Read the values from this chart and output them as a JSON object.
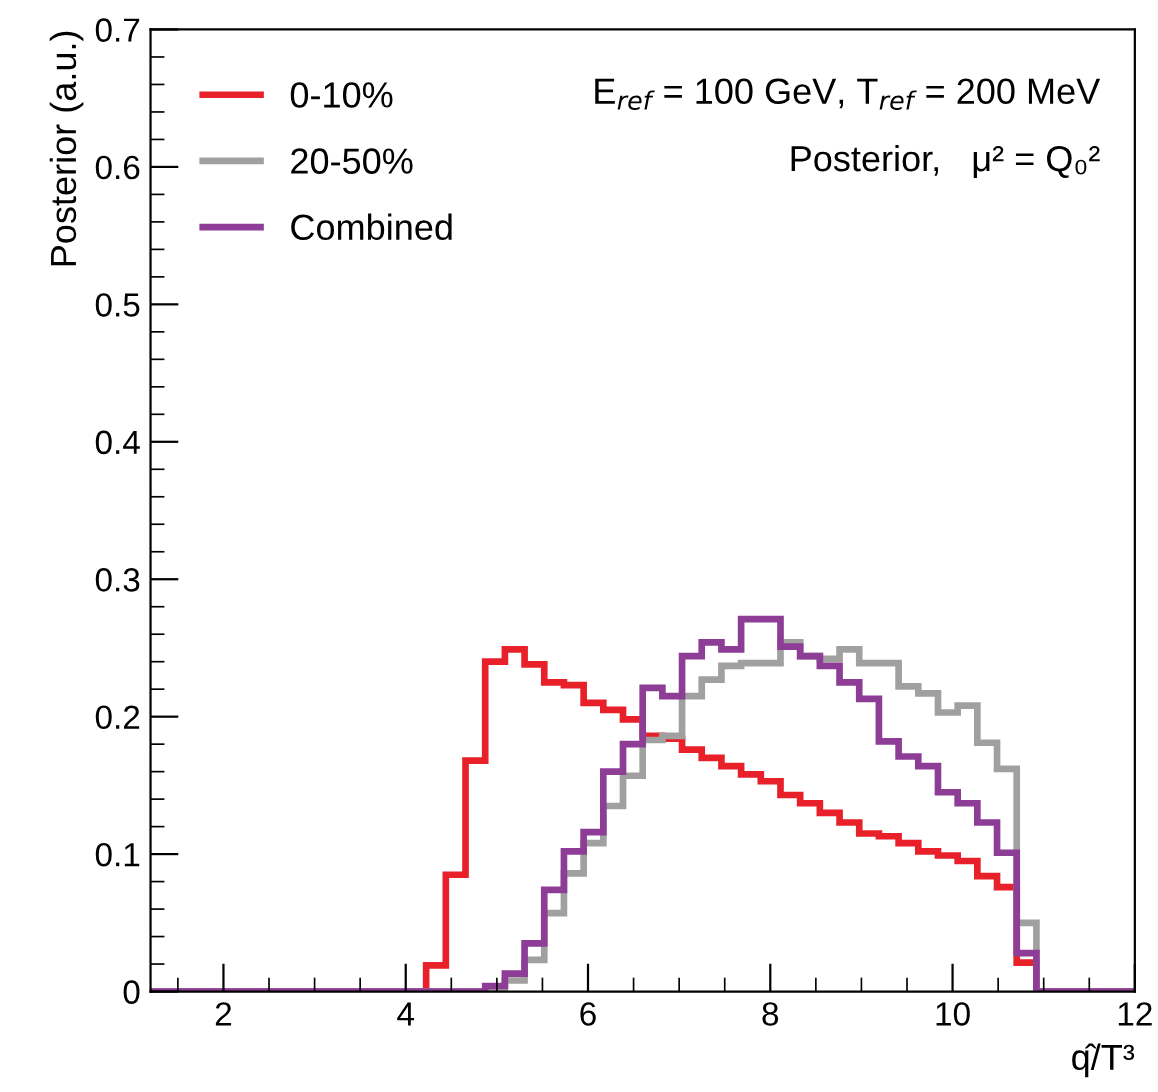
{
  "chart_data": {
    "type": "histogram",
    "xlabel": "q̂/T³",
    "ylabel": "Posterior (a.u.)",
    "annotations": [
      "E$_{ref}$ = 100 GeV, T$_{ref}$ = 200 MeV",
      "Posterior,   μ² = Q₀²"
    ],
    "bins": [
      1.2,
      1.416,
      1.632,
      1.848,
      2.064,
      2.28,
      2.496,
      2.712,
      2.928,
      3.144,
      3.36,
      3.576,
      3.792,
      4.008,
      4.224,
      4.44,
      4.656,
      4.872,
      5.088,
      5.304,
      5.52,
      5.736,
      5.952,
      6.168,
      6.384,
      6.6,
      6.816,
      7.032,
      7.248,
      7.464,
      7.68,
      7.896,
      8.112,
      8.328,
      8.544,
      8.76,
      8.976,
      9.192,
      9.408,
      9.624,
      9.84,
      10.056,
      10.272,
      10.488,
      10.704,
      10.92,
      11.136,
      11.352,
      11.568,
      11.784,
      12.0
    ],
    "series": [
      {
        "name": "0-10%",
        "color": "#e8202a",
        "values": [
          0,
          0,
          0,
          0,
          0,
          0,
          0,
          0,
          0,
          0,
          0,
          0,
          0,
          0,
          0.019,
          0.085,
          0.168,
          0.24,
          0.249,
          0.238,
          0.225,
          0.223,
          0.21,
          0.205,
          0.198,
          0.186,
          0.184,
          0.176,
          0.17,
          0.164,
          0.158,
          0.153,
          0.143,
          0.137,
          0.13,
          0.123,
          0.115,
          0.113,
          0.108,
          0.102,
          0.099,
          0.095,
          0.084,
          0.076,
          0.021,
          0,
          0,
          0,
          0,
          0
        ]
      },
      {
        "name": "20-50%",
        "color": "#a0a0a0",
        "values": [
          0,
          0,
          0,
          0,
          0,
          0,
          0,
          0,
          0,
          0,
          0,
          0,
          0,
          0,
          0,
          0,
          0,
          0,
          0.008,
          0.023,
          0.057,
          0.086,
          0.108,
          0.135,
          0.157,
          0.183,
          0.186,
          0.215,
          0.227,
          0.237,
          0.239,
          0.239,
          0.254,
          0.244,
          0.242,
          0.249,
          0.239,
          0.239,
          0.222,
          0.217,
          0.203,
          0.208,
          0.181,
          0.162,
          0.05,
          0,
          0,
          0,
          0,
          0
        ]
      },
      {
        "name": "Combined",
        "color": "#8e3d96",
        "values": [
          0,
          0,
          0,
          0,
          0,
          0,
          0,
          0,
          0,
          0,
          0,
          0,
          0,
          0,
          0,
          0,
          0,
          0.004,
          0.013,
          0.035,
          0.074,
          0.102,
          0.116,
          0.16,
          0.18,
          0.221,
          0.215,
          0.244,
          0.254,
          0.249,
          0.271,
          0.271,
          0.251,
          0.244,
          0.237,
          0.225,
          0.213,
          0.182,
          0.171,
          0.164,
          0.145,
          0.137,
          0.123,
          0.101,
          0.028,
          0,
          0,
          0,
          0,
          0
        ]
      }
    ],
    "xlim": [
      1.2,
      12
    ],
    "xticks": [
      2,
      4,
      6,
      8,
      10,
      12
    ],
    "ylim": [
      0,
      0.7
    ],
    "yticks": [
      0,
      0.1,
      0.2,
      0.3,
      0.4,
      0.5,
      0.6,
      0.7
    ],
    "legend": "top left",
    "grid": false
  }
}
